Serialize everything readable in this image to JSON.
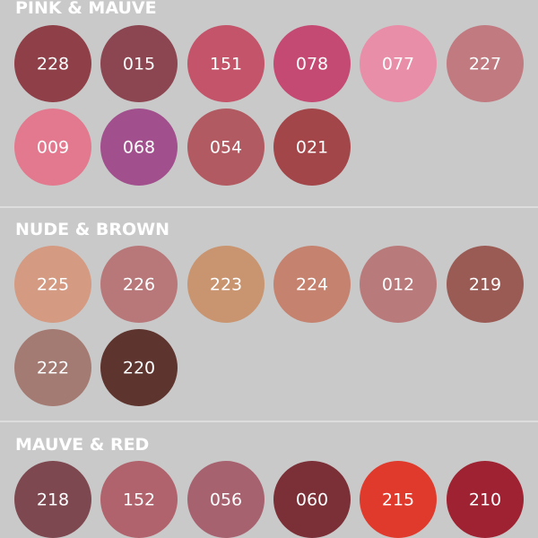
{
  "sections": [
    {
      "title": "PINK & MAUVE",
      "swatches": [
        {
          "label": "228",
          "color": "#8e3f47"
        },
        {
          "label": "015",
          "color": "#8c4651"
        },
        {
          "label": "151",
          "color": "#c45469"
        },
        {
          "label": "078",
          "color": "#c44a74"
        },
        {
          "label": "077",
          "color": "#e88ea8"
        },
        {
          "label": "227",
          "color": "#c07a80"
        },
        {
          "label": "009",
          "color": "#e2798e"
        },
        {
          "label": "068",
          "color": "#a14f8d"
        },
        {
          "label": "054",
          "color": "#b25a61"
        },
        {
          "label": "021",
          "color": "#a3464a"
        }
      ]
    },
    {
      "title": "NUDE & BROWN",
      "swatches": [
        {
          "label": "225",
          "color": "#d49a82"
        },
        {
          "label": "226",
          "color": "#b8787a"
        },
        {
          "label": "223",
          "color": "#c99570"
        },
        {
          "label": "224",
          "color": "#c5826f"
        },
        {
          "label": "012",
          "color": "#b97a7b"
        },
        {
          "label": "219",
          "color": "#9b5b55"
        },
        {
          "label": "222",
          "color": "#a47b73"
        },
        {
          "label": "220",
          "color": "#5e342e"
        }
      ]
    },
    {
      "title": "MAUVE & RED",
      "swatches": [
        {
          "label": "218",
          "color": "#7d4850"
        },
        {
          "label": "152",
          "color": "#b0636c"
        },
        {
          "label": "056",
          "color": "#a76270"
        },
        {
          "label": "060",
          "color": "#7b2f37"
        },
        {
          "label": "215",
          "color": "#e03a2c"
        },
        {
          "label": "210",
          "color": "#9e2231"
        }
      ]
    }
  ]
}
